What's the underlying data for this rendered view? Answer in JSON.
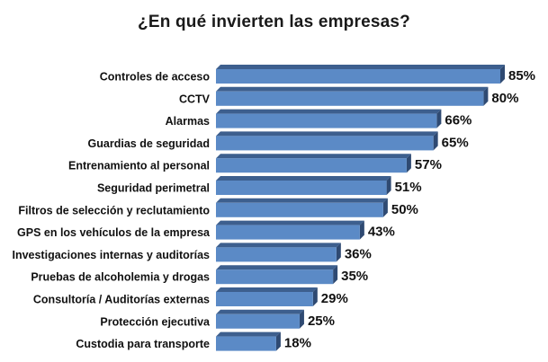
{
  "chart_data": {
    "type": "bar",
    "orientation": "horizontal",
    "title": "¿En qué invierten las empresas?",
    "categories": [
      "Controles de acceso",
      "CCTV",
      "Alarmas",
      "Guardias de seguridad",
      "Entrenamiento al personal",
      "Seguridad perimetral",
      "Filtros de selección y reclutamiento",
      "GPS en los vehículos de la empresa",
      "Investigaciones internas y auditorías",
      "Pruebas de alcoholemia y drogas",
      "Consultoría / Auditorías externas",
      "Protección ejecutiva",
      "Custodia para transporte"
    ],
    "values": [
      85,
      80,
      66,
      65,
      57,
      51,
      50,
      43,
      36,
      35,
      29,
      25,
      18
    ],
    "value_labels": [
      "85%",
      "80%",
      "66%",
      "65%",
      "57%",
      "51%",
      "50%",
      "43%",
      "36%",
      "35%",
      "29%",
      "25%",
      "18%"
    ],
    "xlim": [
      0,
      85
    ],
    "grid": false,
    "legend": "none",
    "colors": {
      "bar_front": "#5b8ac6",
      "bar_top": "#3d5f8e",
      "bar_side": "#2f4a72"
    }
  }
}
